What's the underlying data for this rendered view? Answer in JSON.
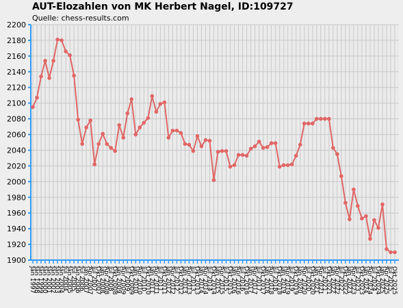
{
  "chart_data": {
    "type": "line",
    "title": "AUT-Elozahlen von MK Herbert Nagel, ID:109727",
    "subtitle": "Quelle: chess-results.com",
    "categories": [
      "Jan 1997",
      "Jan 1998",
      "Jan 1999",
      "Jan 2000",
      "Jan 2001",
      "Jan 2002",
      "Jan 2003",
      "Jan 2004",
      "Jul 2004",
      "Jan 2005",
      "Jul 2005",
      "Jan 2006",
      "Jul 2006",
      "Jan 2007",
      "Apr 2007",
      "Jul 2007",
      "Okt 2007",
      "Jan 2008",
      "Apr 2008",
      "Jul 2008",
      "Okt 2008",
      "Jan 2009",
      "Apr 2009",
      "Jul 2009",
      "Okt 2009",
      "Jan 2010",
      "Apr 2010",
      "Jul 2010",
      "Okt 2010",
      "Jan 2011",
      "Apr 2011",
      "Jul 2011",
      "Okt 2011",
      "Jan 2012",
      "Apr 2012",
      "Jul 2012",
      "Okt 2012",
      "Jan 2013",
      "Apr 2013",
      "Jul 2013",
      "Okt 2013",
      "Jan 2014",
      "Apr 2014",
      "Jul 2014",
      "Okt 2014",
      "Jan 2015",
      "Apr 2015",
      "Jul 2015",
      "Okt 2015",
      "Jan 2016",
      "Apr 2016",
      "Jul 2016",
      "Okt 2016",
      "Jan 2017",
      "Apr 2017",
      "Jul 2017",
      "Okt 2017",
      "Jan 2018",
      "Apr 2018",
      "Jul 2018",
      "Okt 2018",
      "Jan 2019",
      "Apr 2019",
      "Jul 2019",
      "Okt 2019",
      "Jan 2020",
      "Apr 2020",
      "Jul 2020",
      "Okt 2020",
      "Jan 2021",
      "Apr 2021",
      "Jul 2021",
      "Okt 2021",
      "Jan 2022",
      "Apr 2022",
      "Jul 2022",
      "Okt 2022",
      "Jan 2023",
      "Apr 2023",
      "Jul 2023",
      "Okt 2023",
      "Jan 2024",
      "Apr 2024",
      "Jul 2024",
      "Okt 2024",
      "Jan 2025",
      "Apr 2025",
      "Jul 2025",
      "Okt 2025"
    ],
    "series": [
      {
        "color": "#e06666",
        "values": [
          2095,
          2107,
          2134,
          2154,
          2132,
          2154,
          2181,
          2180,
          2166,
          2161,
          2135,
          2079,
          2048,
          2069,
          2078,
          2022,
          2048,
          2061,
          2048,
          2043,
          2039,
          2072,
          2056,
          2087,
          2105,
          2060,
          2069,
          2075,
          2081,
          2109,
          2089,
          2099,
          2101,
          2056,
          2065,
          2065,
          2062,
          2048,
          2047,
          2039,
          2058,
          2045,
          2053,
          2052,
          2002,
          2038,
          2039,
          2039,
          2019,
          2021,
          2034,
          2034,
          2033,
          2042,
          2045,
          2051,
          2043,
          2044,
          2049,
          2049,
          2019,
          2021,
          2021,
          2022,
          2033,
          2047,
          2074,
          2074,
          2074,
          2080,
          2080,
          2080,
          2080,
          2043,
          2035,
          2007,
          1973,
          1952,
          1990,
          1969,
          1953,
          1956,
          1927,
          1951,
          1941,
          1971,
          1914,
          1910,
          1910
        ]
      }
    ],
    "ylim": [
      1900,
      2200
    ],
    "yticks": [
      1900,
      1920,
      1940,
      1960,
      1980,
      2000,
      2020,
      2040,
      2060,
      2080,
      2100,
      2120,
      2140,
      2160,
      2180,
      2200
    ],
    "grid": true
  }
}
